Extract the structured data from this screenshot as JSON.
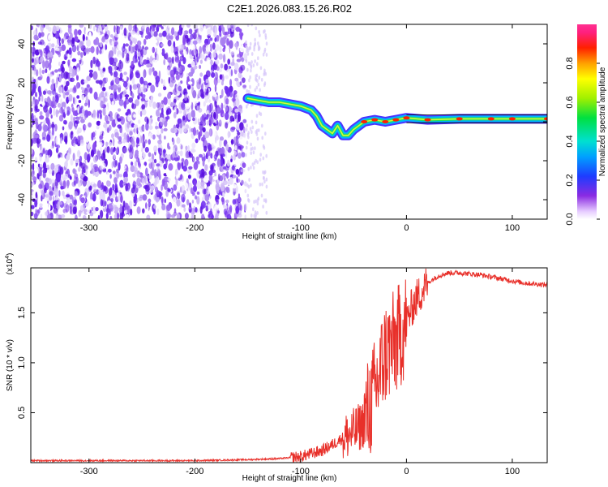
{
  "title": "C2E1.2026.083.15.26.R02",
  "chart_data": [
    {
      "type": "heatmap",
      "xlabel": "Height of straight line (km)",
      "ylabel": "Frequency (Hz)",
      "xlim": [
        -355,
        133
      ],
      "ylim": [
        -50,
        50
      ],
      "xticks": [
        -300,
        -200,
        -100,
        0,
        100
      ],
      "yticks": [
        -40,
        -20,
        0,
        20,
        40
      ],
      "noise_region": [
        -355,
        -152
      ],
      "sparse_region": [
        -152,
        -132
      ],
      "ridge": [
        {
          "x": -150,
          "y": 12
        },
        {
          "x": -140,
          "y": 11
        },
        {
          "x": -130,
          "y": 10
        },
        {
          "x": -120,
          "y": 10
        },
        {
          "x": -110,
          "y": 9
        },
        {
          "x": -100,
          "y": 8
        },
        {
          "x": -90,
          "y": 6
        },
        {
          "x": -85,
          "y": 3
        },
        {
          "x": -80,
          "y": -2
        },
        {
          "x": -75,
          "y": -4
        },
        {
          "x": -70,
          "y": -6
        },
        {
          "x": -65,
          "y": -2
        },
        {
          "x": -60,
          "y": -7
        },
        {
          "x": -55,
          "y": -7
        },
        {
          "x": -50,
          "y": -4
        },
        {
          "x": -40,
          "y": 0
        },
        {
          "x": -30,
          "y": 1
        },
        {
          "x": -20,
          "y": 0
        },
        {
          "x": -10,
          "y": 1
        },
        {
          "x": 0,
          "y": 2
        },
        {
          "x": 20,
          "y": 1
        },
        {
          "x": 50,
          "y": 1.5
        },
        {
          "x": 80,
          "y": 1.5
        },
        {
          "x": 100,
          "y": 1.5
        },
        {
          "x": 133,
          "y": 1.5
        }
      ]
    },
    {
      "type": "line",
      "xlabel": "Height of straight line (km)",
      "ylabel": "SNR (10 * v/v)",
      "y_multiplier": "(x10^4)",
      "y_multiplier_base": "(x10",
      "y_multiplier_exp": "4",
      "xlim": [
        -355,
        133
      ],
      "ylim": [
        0,
        1.95
      ],
      "xticks": [
        -300,
        -200,
        -100,
        0,
        100
      ],
      "yticks": [
        0.5,
        1.0,
        1.5
      ],
      "ytick_labels": [
        "0.5",
        "1.0",
        "1.5"
      ],
      "color": "#e8302a",
      "series": [
        {
          "x": [
            -355,
            -300,
            -200,
            -150,
            -120,
            -100,
            -80,
            -70,
            -60,
            -50,
            -45,
            -40,
            -35,
            -30,
            -25,
            -20,
            -15,
            -10,
            -5,
            0,
            5,
            10,
            20,
            30,
            40,
            50,
            60,
            70,
            80,
            90,
            100,
            110,
            120,
            133
          ],
          "y": [
            0.02,
            0.02,
            0.02,
            0.03,
            0.04,
            0.06,
            0.12,
            0.18,
            0.25,
            0.3,
            0.35,
            0.4,
            0.55,
            0.7,
            0.9,
            1.1,
            1.15,
            1.2,
            1.3,
            1.4,
            1.55,
            1.65,
            1.8,
            1.87,
            1.9,
            1.9,
            1.89,
            1.88,
            1.86,
            1.84,
            1.82,
            1.8,
            1.79,
            1.78
          ]
        }
      ]
    }
  ],
  "colorbar": {
    "label": "Normalized spectral amplitude",
    "range": [
      0,
      1
    ],
    "ticks": [
      0.0,
      0.2,
      0.4,
      0.6,
      0.8
    ],
    "tick_labels": [
      "0.0",
      "0.2",
      "0.4",
      "0.6",
      "0.8"
    ]
  }
}
